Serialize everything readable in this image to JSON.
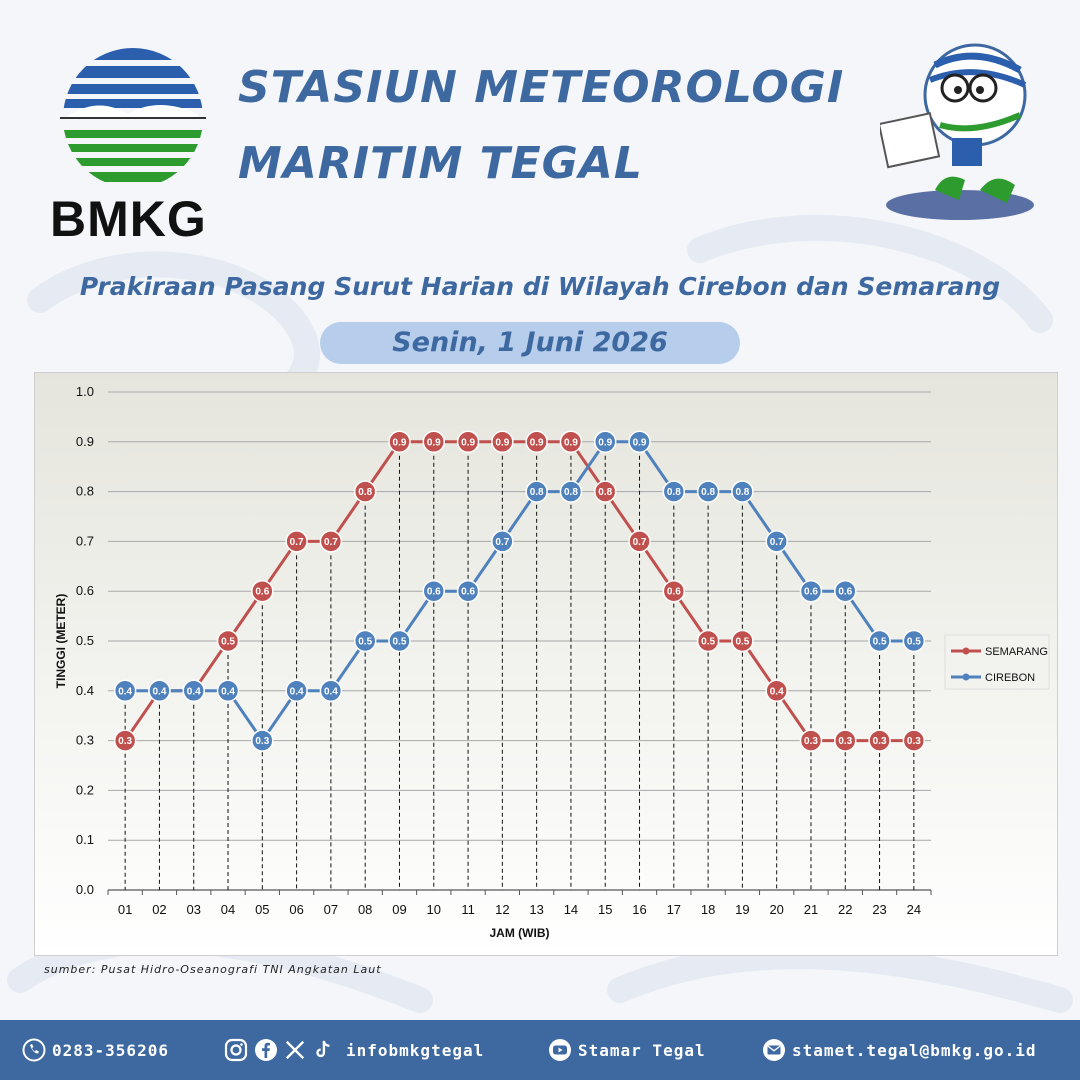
{
  "header": {
    "logo_text": "BMKG",
    "title_line1": "STASIUN METEOROLOGI",
    "title_line2": "MARITIM TEGAL",
    "subtitle": "Prakiraan Pasang Surut Harian di Wilayah Cirebon dan Semarang",
    "date": "Senin, 1 Juni 2026"
  },
  "source": "sumber: Pusat Hidro-Oseanografi TNI Angkatan Laut",
  "footer": {
    "phone": "0283-356206",
    "social": "infobmkgtegal",
    "youtube": "Stamar Tegal",
    "email": "stamet.tegal@bmkg.go.id"
  },
  "colors": {
    "title": "#3d68a0",
    "semarang": "#c0504d",
    "cirebon": "#4f81bd",
    "footer_bg": "#3d68a0"
  },
  "icons": [
    "phone-icon",
    "instagram-icon",
    "facebook-icon",
    "x-icon",
    "tiktok-icon",
    "youtube-icon",
    "email-icon"
  ],
  "chart_data": {
    "type": "line",
    "xlabel": "JAM (WIB)",
    "ylabel": "TINGGI (METER)",
    "ylim": [
      0,
      1.0
    ],
    "yticks": [
      "0.0",
      "0.1",
      "0.2",
      "0.3",
      "0.4",
      "0.5",
      "0.6",
      "0.7",
      "0.8",
      "0.9",
      "1.0"
    ],
    "grid": true,
    "legend_position": "right",
    "categories": [
      "01",
      "02",
      "03",
      "04",
      "05",
      "06",
      "07",
      "08",
      "09",
      "10",
      "11",
      "12",
      "13",
      "14",
      "15",
      "16",
      "17",
      "18",
      "19",
      "20",
      "21",
      "22",
      "23",
      "24"
    ],
    "series": [
      {
        "name": "SEMARANG",
        "color": "#c0504d",
        "values": [
          0.3,
          0.4,
          0.4,
          0.5,
          0.6,
          0.7,
          0.7,
          0.8,
          0.9,
          0.9,
          0.9,
          0.9,
          0.9,
          0.9,
          0.8,
          0.7,
          0.6,
          0.5,
          0.5,
          0.4,
          0.3,
          0.3,
          0.3,
          0.3
        ]
      },
      {
        "name": "CIREBON",
        "color": "#4f81bd",
        "values": [
          0.4,
          0.4,
          0.4,
          0.4,
          0.3,
          0.4,
          0.4,
          0.5,
          0.5,
          0.6,
          0.6,
          0.7,
          0.8,
          0.8,
          0.9,
          0.9,
          0.8,
          0.8,
          0.8,
          0.7,
          0.6,
          0.6,
          0.5,
          0.5
        ]
      }
    ]
  }
}
